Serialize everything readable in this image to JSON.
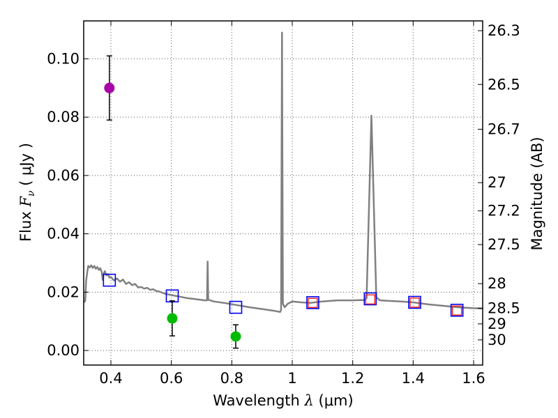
{
  "chart_data": {
    "type": "scatter",
    "xlabel": {
      "prefix": "Wavelength  ",
      "symbol": "λ",
      "unit": " (μm)"
    },
    "ylabel": {
      "prefix": "Flux  ",
      "symbol": "F",
      "subscript": "ν",
      "unit": "  ( μJy )"
    },
    "y2label": "Magnitude (AB)",
    "xlim": [
      0.31,
      1.63
    ],
    "ylim": [
      -0.005,
      0.113
    ],
    "grid": true,
    "x_ticks": [
      {
        "value": 0.4,
        "label": "0.4"
      },
      {
        "value": 0.6,
        "label": "0.6"
      },
      {
        "value": 0.8,
        "label": "0.8"
      },
      {
        "value": 1.0,
        "label": "1"
      },
      {
        "value": 1.2,
        "label": "1.2"
      },
      {
        "value": 1.4,
        "label": "1.4"
      },
      {
        "value": 1.6,
        "label": "1.6"
      }
    ],
    "y_ticks": [
      {
        "value": 0.0,
        "label": "0.00"
      },
      {
        "value": 0.02,
        "label": "0.02"
      },
      {
        "value": 0.04,
        "label": "0.04"
      },
      {
        "value": 0.06,
        "label": "0.06"
      },
      {
        "value": 0.08,
        "label": "0.08"
      },
      {
        "value": 0.1,
        "label": "0.10"
      }
    ],
    "y2_ticks": [
      {
        "mag": 26.3,
        "label": "26.3"
      },
      {
        "mag": 26.5,
        "label": "26.5"
      },
      {
        "mag": 26.7,
        "label": "26.7"
      },
      {
        "mag": 27.0,
        "label": "27"
      },
      {
        "mag": 27.2,
        "label": "27.2"
      },
      {
        "mag": 27.5,
        "label": "27.5"
      },
      {
        "mag": 28.0,
        "label": "28"
      },
      {
        "mag": 28.5,
        "label": "28.5"
      },
      {
        "mag": 29.0,
        "label": "29"
      },
      {
        "mag": 30.0,
        "label": "30"
      }
    ],
    "observed_points": [
      {
        "name": "magenta-point",
        "x": 0.395,
        "y": 0.09,
        "err": 0.011,
        "color": "#aa00aa"
      },
      {
        "name": "green-point-1",
        "x": 0.603,
        "y": 0.011,
        "err": 0.006,
        "color": "#00bb00"
      },
      {
        "name": "green-point-2",
        "x": 0.813,
        "y": 0.0048,
        "err": 0.004,
        "color": "#00bb00"
      }
    ],
    "model_blue_squares": [
      {
        "x": 0.395,
        "y": 0.0241
      },
      {
        "x": 0.603,
        "y": 0.0187
      },
      {
        "x": 0.813,
        "y": 0.0148
      },
      {
        "x": 1.068,
        "y": 0.0164
      },
      {
        "x": 1.258,
        "y": 0.0177
      },
      {
        "x": 1.405,
        "y": 0.0165
      },
      {
        "x": 1.545,
        "y": 0.0138
      }
    ],
    "model_red_squares": [
      {
        "x": 1.068,
        "y": 0.0163
      },
      {
        "x": 1.258,
        "y": 0.0175
      },
      {
        "x": 1.405,
        "y": 0.0164
      },
      {
        "x": 1.545,
        "y": 0.0137
      }
    ],
    "sed_curve": [
      [
        0.31,
        0.0165
      ],
      [
        0.315,
        0.017
      ],
      [
        0.318,
        0.024
      ],
      [
        0.322,
        0.027
      ],
      [
        0.325,
        0.029
      ],
      [
        0.33,
        0.0285
      ],
      [
        0.335,
        0.0292
      ],
      [
        0.34,
        0.0283
      ],
      [
        0.345,
        0.029
      ],
      [
        0.35,
        0.028
      ],
      [
        0.355,
        0.0286
      ],
      [
        0.36,
        0.0276
      ],
      [
        0.365,
        0.0282
      ],
      [
        0.37,
        0.0268
      ],
      [
        0.373,
        0.0242
      ],
      [
        0.376,
        0.0262
      ],
      [
        0.38,
        0.0272
      ],
      [
        0.385,
        0.0258
      ],
      [
        0.39,
        0.0262
      ],
      [
        0.395,
        0.025
      ],
      [
        0.4,
        0.0252
      ],
      [
        0.41,
        0.024
      ],
      [
        0.42,
        0.0247
      ],
      [
        0.43,
        0.0236
      ],
      [
        0.44,
        0.0243
      ],
      [
        0.45,
        0.0228
      ],
      [
        0.46,
        0.0234
      ],
      [
        0.47,
        0.0224
      ],
      [
        0.48,
        0.0228
      ],
      [
        0.49,
        0.0216
      ],
      [
        0.5,
        0.0218
      ],
      [
        0.51,
        0.0212
      ],
      [
        0.52,
        0.0215
      ],
      [
        0.53,
        0.0208
      ],
      [
        0.54,
        0.021
      ],
      [
        0.55,
        0.0204
      ],
      [
        0.56,
        0.0202
      ],
      [
        0.57,
        0.0198
      ],
      [
        0.58,
        0.0194
      ],
      [
        0.6,
        0.019
      ],
      [
        0.62,
        0.0186
      ],
      [
        0.65,
        0.018
      ],
      [
        0.68,
        0.0176
      ],
      [
        0.71,
        0.0172
      ],
      [
        0.718,
        0.0172
      ],
      [
        0.72,
        0.0305
      ],
      [
        0.722,
        0.0174
      ],
      [
        0.74,
        0.0168
      ],
      [
        0.78,
        0.0162
      ],
      [
        0.82,
        0.0155
      ],
      [
        0.86,
        0.0148
      ],
      [
        0.9,
        0.0142
      ],
      [
        0.94,
        0.0136
      ],
      [
        0.96,
        0.0132
      ],
      [
        0.963,
        0.014
      ],
      [
        0.966,
        0.109
      ],
      [
        0.969,
        0.016
      ],
      [
        0.975,
        0.0148
      ],
      [
        0.985,
        0.016
      ],
      [
        1.0,
        0.0168
      ],
      [
        1.03,
        0.0165
      ],
      [
        1.06,
        0.0163
      ],
      [
        1.1,
        0.0168
      ],
      [
        1.15,
        0.0172
      ],
      [
        1.2,
        0.0172
      ],
      [
        1.24,
        0.0173
      ],
      [
        1.246,
        0.018
      ],
      [
        1.262,
        0.0805
      ],
      [
        1.278,
        0.0182
      ],
      [
        1.29,
        0.0172
      ],
      [
        1.32,
        0.017
      ],
      [
        1.36,
        0.0168
      ],
      [
        1.4,
        0.0165
      ],
      [
        1.45,
        0.0158
      ],
      [
        1.5,
        0.0153
      ],
      [
        1.55,
        0.0148
      ],
      [
        1.6,
        0.0145
      ],
      [
        1.63,
        0.0144
      ]
    ],
    "colors": {
      "curve": "#808080",
      "blue_square": "#0000ee",
      "red_square": "#ee2222",
      "errorbar": "#000000",
      "grid": "#555555"
    }
  }
}
